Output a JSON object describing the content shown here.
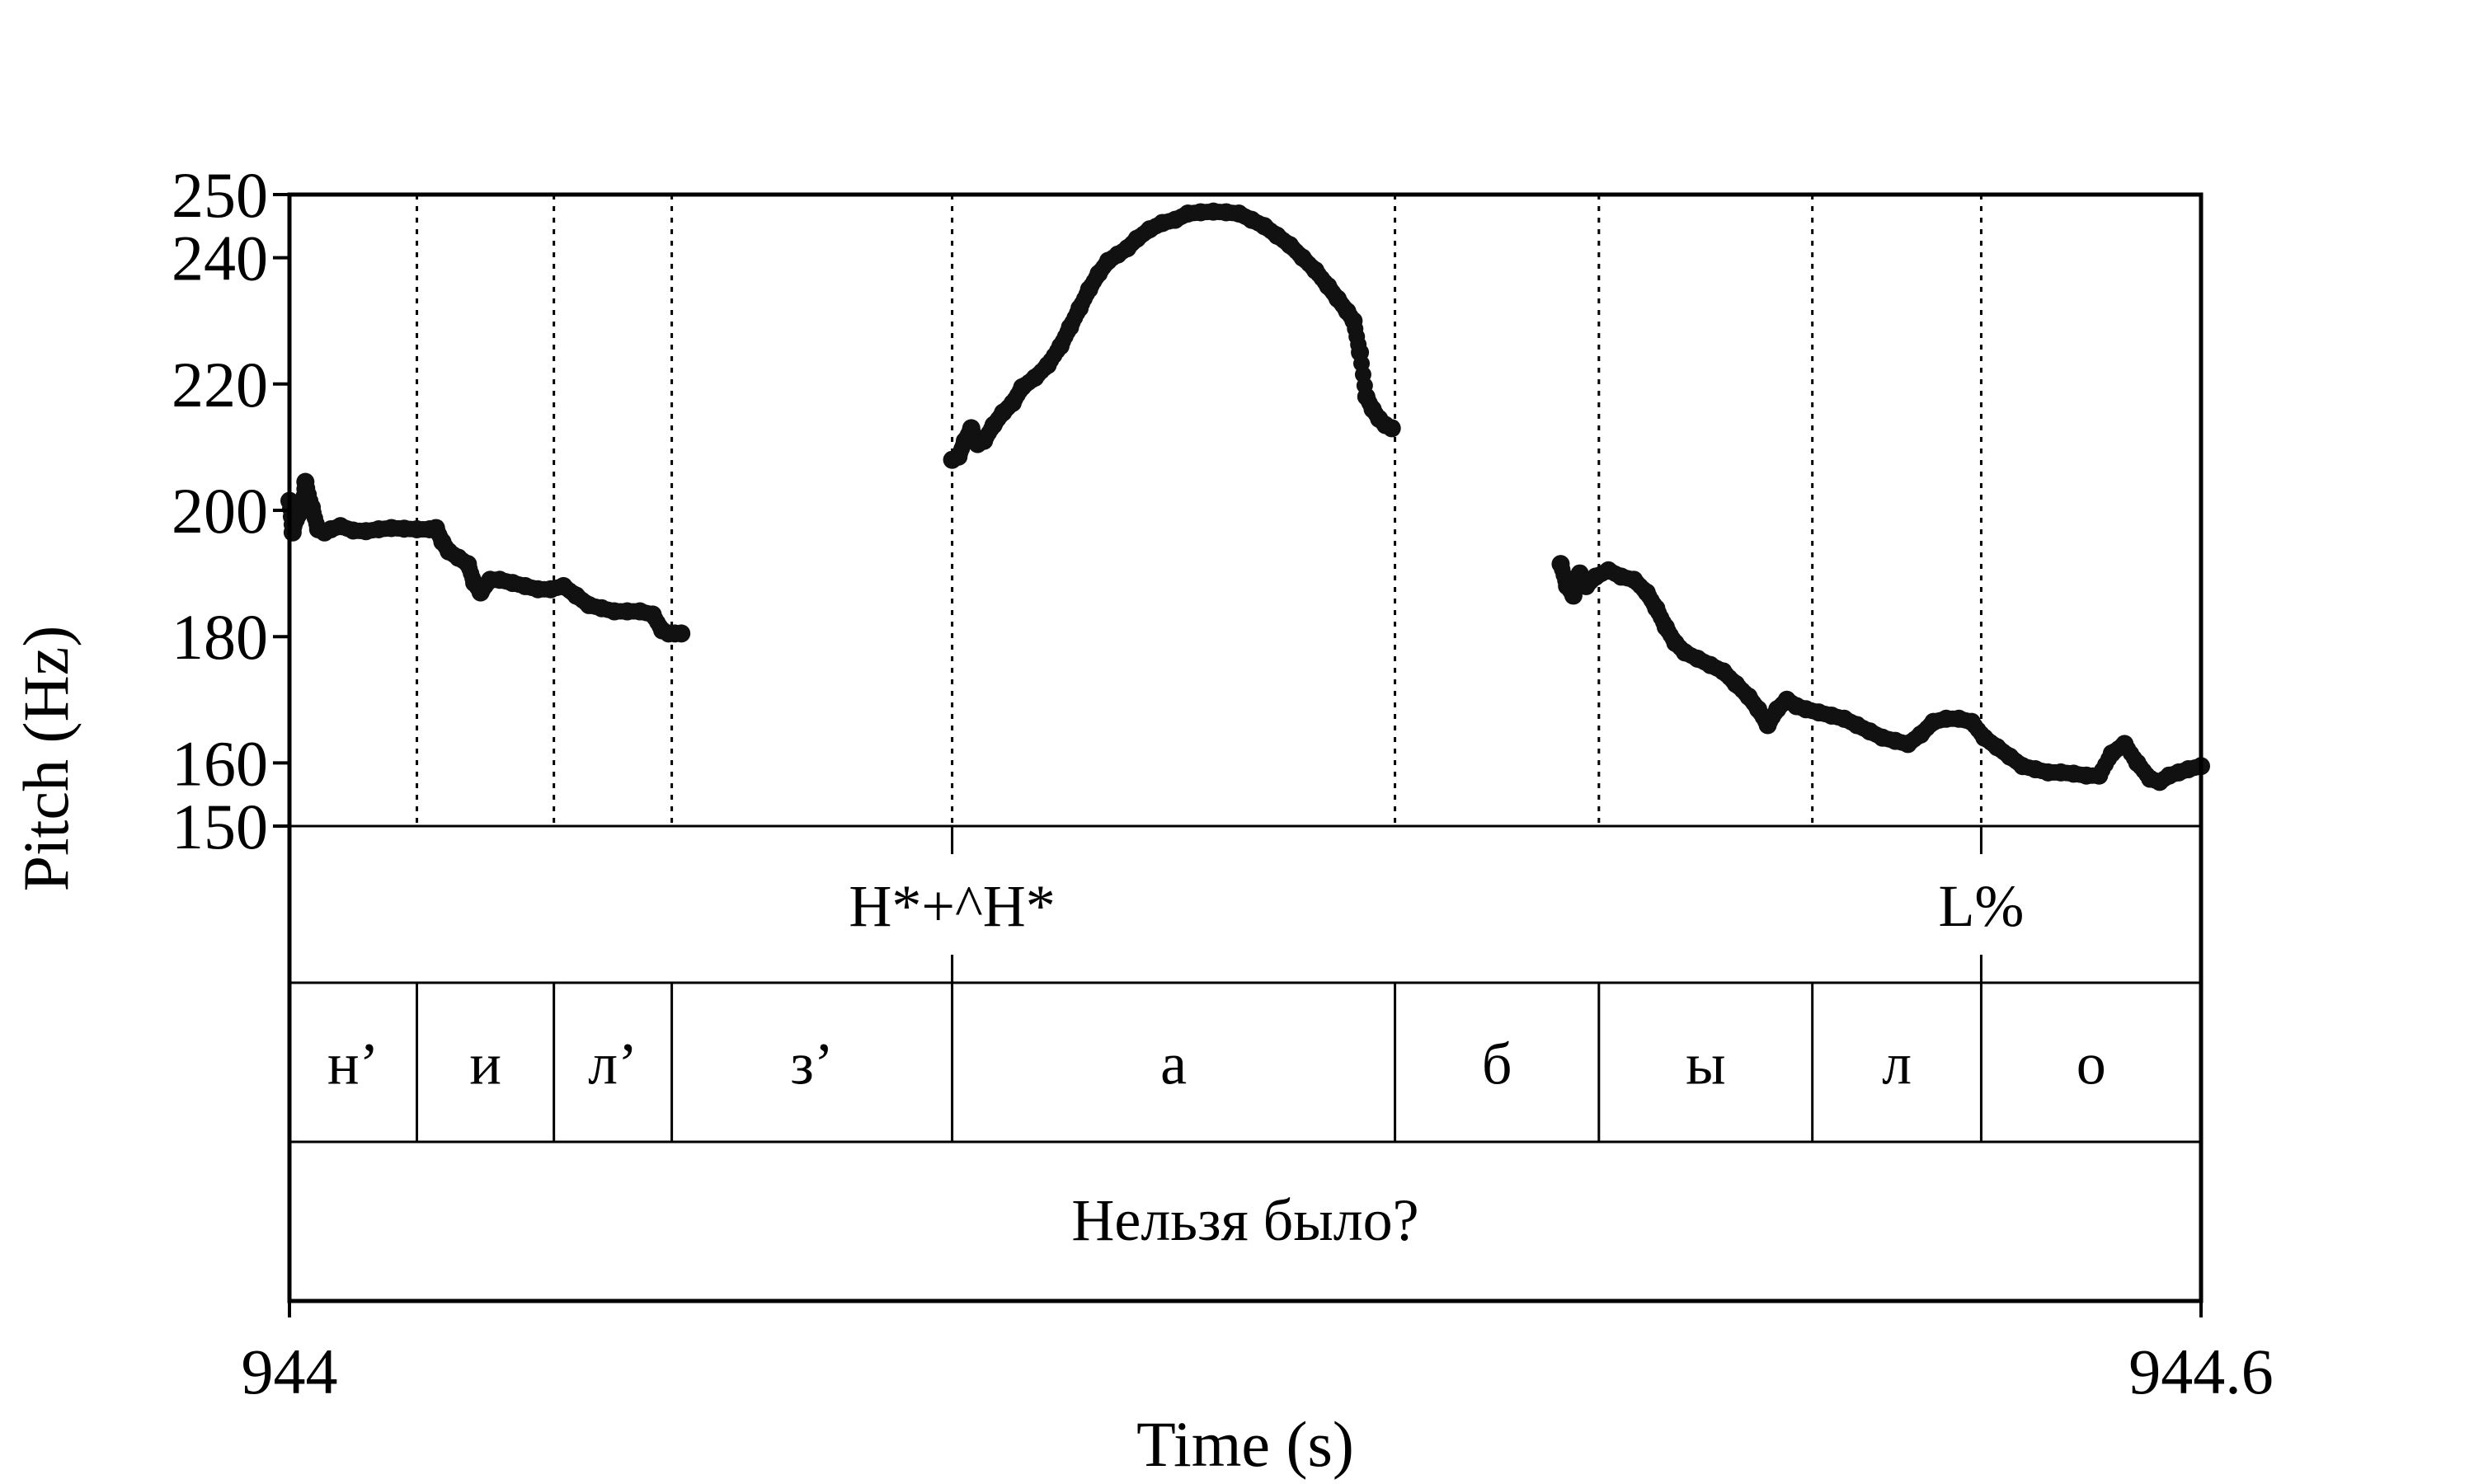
{
  "chart_data": {
    "type": "scatter",
    "title": "",
    "xlabel": "Time (s)",
    "ylabel": "Pitch (Hz)",
    "xlim": [
      944,
      944.6
    ],
    "ylim": [
      150,
      250
    ],
    "x_tick_labels": [
      "944",
      "944.6"
    ],
    "y_ticks": [
      150,
      160,
      180,
      200,
      220,
      240,
      250
    ],
    "y_tick_labels": [
      "150",
      "160",
      "180",
      "200",
      "220",
      "240",
      "250"
    ],
    "grid": false,
    "marker_color": "#111111",
    "boundaries": [
      944.04,
      944.083,
      944.12,
      944.208,
      944.347,
      944.411,
      944.478,
      944.531
    ],
    "tones": [
      {
        "label": "H*+^H*",
        "time": 944.208
      },
      {
        "label": "L%",
        "time": 944.531
      }
    ],
    "segments": [
      {
        "label": "н’",
        "start": 944.0,
        "end": 944.04
      },
      {
        "label": "и",
        "start": 944.04,
        "end": 944.083
      },
      {
        "label": "л’",
        "start": 944.083,
        "end": 944.12
      },
      {
        "label": "з’",
        "start": 944.12,
        "end": 944.208
      },
      {
        "label": "а",
        "start": 944.208,
        "end": 944.347
      },
      {
        "label": "б",
        "start": 944.347,
        "end": 944.411
      },
      {
        "label": "ы",
        "start": 944.411,
        "end": 944.478
      },
      {
        "label": "л",
        "start": 944.478,
        "end": 944.531
      },
      {
        "label": "о",
        "start": 944.531,
        "end": 944.6
      }
    ],
    "sentence": "Нельзя было?",
    "pitch_series": [
      {
        "x": [
          944.0,
          944.001,
          944.002,
          944.004,
          944.005,
          944.007,
          944.009,
          944.011,
          944.013,
          944.016,
          944.02,
          944.024,
          944.028,
          944.032,
          944.036,
          944.04,
          944.044,
          944.046,
          944.048,
          944.05,
          944.053,
          944.056,
          944.058,
          944.06,
          944.063,
          944.066,
          944.07,
          944.074,
          944.078,
          944.082,
          944.086,
          944.09,
          944.094,
          944.098,
          944.102,
          944.106,
          944.11,
          944.114,
          944.117,
          944.119,
          944.121,
          944.123
        ],
        "y": [
          201.5,
          196.5,
          198.5,
          200.0,
          204.5,
          200.5,
          197.0,
          196.5,
          197.0,
          197.5,
          196.8,
          196.7,
          197.0,
          197.2,
          197.1,
          197.0,
          197.0,
          197.2,
          195.0,
          193.5,
          192.5,
          191.5,
          188.5,
          187.0,
          189.0,
          189.0,
          188.5,
          188.0,
          187.5,
          187.5,
          188.0,
          186.5,
          185.0,
          184.5,
          184.0,
          184.0,
          184.0,
          183.5,
          181.0,
          180.5,
          180.5,
          180.5
        ]
      },
      {
        "x": [
          944.208,
          944.21,
          944.212,
          944.214,
          944.216,
          944.218,
          944.221,
          944.224,
          944.227,
          944.23,
          944.234,
          944.238,
          944.242,
          944.245,
          944.248,
          944.251,
          944.254,
          944.257,
          944.26,
          944.263,
          944.266,
          944.27,
          944.274,
          944.278,
          944.282,
          944.286,
          944.29,
          944.294,
          944.298,
          944.302,
          944.306,
          944.31,
          944.314,
          944.318,
          944.322,
          944.326,
          944.329,
          944.332,
          944.334,
          944.336,
          944.338,
          944.34,
          944.342,
          944.344,
          944.346
        ],
        "y": [
          208.0,
          208.5,
          211.0,
          213.0,
          210.5,
          211.0,
          213.5,
          215.5,
          217.0,
          219.5,
          221.0,
          223.0,
          226.0,
          229.0,
          232.0,
          235.0,
          237.5,
          239.5,
          240.5,
          241.5,
          243.0,
          244.5,
          245.5,
          246.0,
          247.0,
          247.2,
          247.3,
          247.2,
          247.0,
          246.0,
          245.0,
          243.5,
          242.0,
          240.0,
          238.0,
          235.5,
          233.5,
          231.5,
          230.0,
          225.0,
          218.0,
          216.0,
          214.5,
          213.5,
          213.0
        ]
      },
      {
        "x": [
          944.399,
          944.401,
          944.403,
          944.405,
          944.407,
          944.41,
          944.414,
          944.418,
          944.422,
          944.426,
          944.429,
          944.432,
          944.435,
          944.438,
          944.442,
          944.446,
          944.45,
          944.454,
          944.458,
          944.461,
          944.464,
          944.467,
          944.47,
          944.473,
          944.476,
          944.48,
          944.484,
          944.488,
          944.492,
          944.496,
          944.5,
          944.504,
          944.508,
          944.512,
          944.516,
          944.52,
          944.524,
          944.528,
          944.532,
          944.536,
          944.54,
          944.544,
          944.548,
          944.552,
          944.556,
          944.56,
          944.564,
          944.568,
          944.572,
          944.576,
          944.58,
          944.584,
          944.587,
          944.59,
          944.593,
          944.596,
          944.6
        ],
        "y": [
          191.5,
          188.0,
          186.5,
          190.0,
          188.0,
          189.5,
          190.5,
          189.5,
          189.0,
          187.0,
          184.5,
          181.5,
          179.0,
          177.5,
          176.5,
          175.5,
          174.5,
          172.5,
          170.5,
          168.5,
          166.0,
          168.5,
          170.0,
          169.0,
          168.5,
          168.0,
          167.5,
          167.0,
          166.0,
          165.0,
          164.0,
          163.5,
          163.0,
          164.5,
          166.5,
          167.0,
          167.0,
          166.5,
          164.0,
          162.5,
          161.0,
          159.5,
          159.0,
          158.5,
          158.5,
          158.3,
          158.0,
          158.0,
          161.5,
          163.0,
          160.0,
          157.5,
          157.0,
          158.0,
          158.5,
          159.0,
          159.5
        ]
      }
    ]
  }
}
